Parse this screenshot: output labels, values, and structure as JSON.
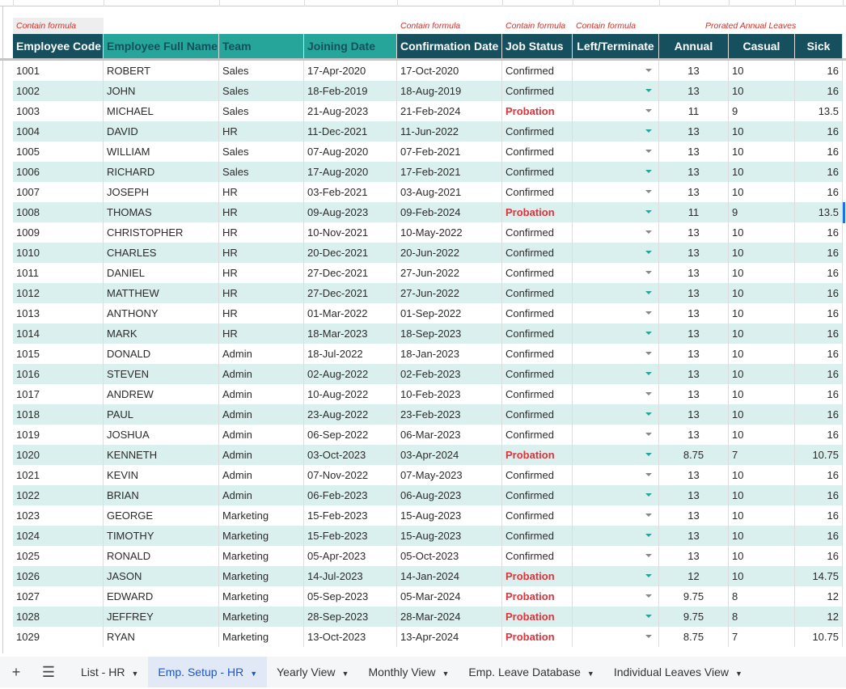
{
  "notes": {
    "code": "Contain formula",
    "confirm": "Contain formula",
    "status": "Contain formula",
    "left": "Contain formula",
    "prorated": "Prorated Annual Leaves"
  },
  "headers": [
    "Employee Code",
    "Employee Full Name",
    "Team",
    "Joining Date",
    "Confirmation Date",
    "Job Status",
    "Left/Terminate",
    "Annual",
    "Casual",
    "Sick"
  ],
  "rows": [
    [
      "1001",
      "ROBERT",
      "Sales",
      "17-Apr-2020",
      "17-Oct-2020",
      "Confirmed",
      "",
      "13",
      "10",
      "16"
    ],
    [
      "1002",
      "JOHN",
      "Sales",
      "18-Feb-2019",
      "18-Aug-2019",
      "Confirmed",
      "",
      "13",
      "10",
      "16"
    ],
    [
      "1003",
      "MICHAEL",
      "Sales",
      "21-Aug-2023",
      "21-Feb-2024",
      "Probation",
      "",
      "11",
      "9",
      "13.5"
    ],
    [
      "1004",
      "DAVID",
      "HR",
      "11-Dec-2021",
      "11-Jun-2022",
      "Confirmed",
      "",
      "13",
      "10",
      "16"
    ],
    [
      "1005",
      "WILLIAM",
      "Sales",
      "07-Aug-2020",
      "07-Feb-2021",
      "Confirmed",
      "",
      "13",
      "10",
      "16"
    ],
    [
      "1006",
      "RICHARD",
      "Sales",
      "17-Aug-2020",
      "17-Feb-2021",
      "Confirmed",
      "",
      "13",
      "10",
      "16"
    ],
    [
      "1007",
      "JOSEPH",
      "HR",
      "03-Feb-2021",
      "03-Aug-2021",
      "Confirmed",
      "",
      "13",
      "10",
      "16"
    ],
    [
      "1008",
      "THOMAS",
      "HR",
      "09-Aug-2023",
      "09-Feb-2024",
      "Probation",
      "",
      "11",
      "9",
      "13.5"
    ],
    [
      "1009",
      "CHRISTOPHER",
      "HR",
      "10-Nov-2021",
      "10-May-2022",
      "Confirmed",
      "",
      "13",
      "10",
      "16"
    ],
    [
      "1010",
      "CHARLES",
      "HR",
      "20-Dec-2021",
      "20-Jun-2022",
      "Confirmed",
      "",
      "13",
      "10",
      "16"
    ],
    [
      "1011",
      "DANIEL",
      "HR",
      "27-Dec-2021",
      "27-Jun-2022",
      "Confirmed",
      "",
      "13",
      "10",
      "16"
    ],
    [
      "1012",
      "MATTHEW",
      "HR",
      "27-Dec-2021",
      "27-Jun-2022",
      "Confirmed",
      "",
      "13",
      "10",
      "16"
    ],
    [
      "1013",
      "ANTHONY",
      "HR",
      "01-Mar-2022",
      "01-Sep-2022",
      "Confirmed",
      "",
      "13",
      "10",
      "16"
    ],
    [
      "1014",
      "MARK",
      "HR",
      "18-Mar-2023",
      "18-Sep-2023",
      "Confirmed",
      "",
      "13",
      "10",
      "16"
    ],
    [
      "1015",
      "DONALD",
      "Admin",
      "18-Jul-2022",
      "18-Jan-2023",
      "Confirmed",
      "",
      "13",
      "10",
      "16"
    ],
    [
      "1016",
      "STEVEN",
      "Admin",
      "02-Aug-2022",
      "02-Feb-2023",
      "Confirmed",
      "",
      "13",
      "10",
      "16"
    ],
    [
      "1017",
      "ANDREW",
      "Admin",
      "10-Aug-2022",
      "10-Feb-2023",
      "Confirmed",
      "",
      "13",
      "10",
      "16"
    ],
    [
      "1018",
      "PAUL",
      "Admin",
      "23-Aug-2022",
      "23-Feb-2023",
      "Confirmed",
      "",
      "13",
      "10",
      "16"
    ],
    [
      "1019",
      "JOSHUA",
      "Admin",
      "06-Sep-2022",
      "06-Mar-2023",
      "Confirmed",
      "",
      "13",
      "10",
      "16"
    ],
    [
      "1020",
      "KENNETH",
      "Admin",
      "03-Oct-2023",
      "03-Apr-2024",
      "Probation",
      "",
      "8.75",
      "7",
      "10.75"
    ],
    [
      "1021",
      "KEVIN",
      "Admin",
      "07-Nov-2022",
      "07-May-2023",
      "Confirmed",
      "",
      "13",
      "10",
      "16"
    ],
    [
      "1022",
      "BRIAN",
      "Admin",
      "06-Feb-2023",
      "06-Aug-2023",
      "Confirmed",
      "",
      "13",
      "10",
      "16"
    ],
    [
      "1023",
      "GEORGE",
      "Marketing",
      "15-Feb-2023",
      "15-Aug-2023",
      "Confirmed",
      "",
      "13",
      "10",
      "16"
    ],
    [
      "1024",
      "TIMOTHY",
      "Marketing",
      "15-Feb-2023",
      "15-Aug-2023",
      "Confirmed",
      "",
      "13",
      "10",
      "16"
    ],
    [
      "1025",
      "RONALD",
      "Marketing",
      "05-Apr-2023",
      "05-Oct-2023",
      "Confirmed",
      "",
      "13",
      "10",
      "16"
    ],
    [
      "1026",
      "JASON",
      "Marketing",
      "14-Jul-2023",
      "14-Jan-2024",
      "Probation",
      "",
      "12",
      "10",
      "14.75"
    ],
    [
      "1027",
      "EDWARD",
      "Marketing",
      "05-Sep-2023",
      "05-Mar-2024",
      "Probation",
      "",
      "9.75",
      "8",
      "12"
    ],
    [
      "1028",
      "JEFFREY",
      "Marketing",
      "28-Sep-2023",
      "28-Mar-2024",
      "Probation",
      "",
      "9.75",
      "8",
      "12"
    ],
    [
      "1029",
      "RYAN",
      "Marketing",
      "13-Oct-2023",
      "13-Apr-2024",
      "Probation",
      "",
      "8.75",
      "7",
      "10.75"
    ]
  ],
  "tabs": [
    {
      "label": "List - HR"
    },
    {
      "label": "Emp. Setup - HR",
      "active": true
    },
    {
      "label": "Yearly View"
    },
    {
      "label": "Monthly View"
    },
    {
      "label": "Emp. Leave Database"
    },
    {
      "label": "Individual Leaves View"
    }
  ],
  "colors": {
    "dark_header": "#164f5e",
    "teal_header": "#26a69a",
    "stripe": "#daf0ee",
    "probation": "#e0323a"
  }
}
